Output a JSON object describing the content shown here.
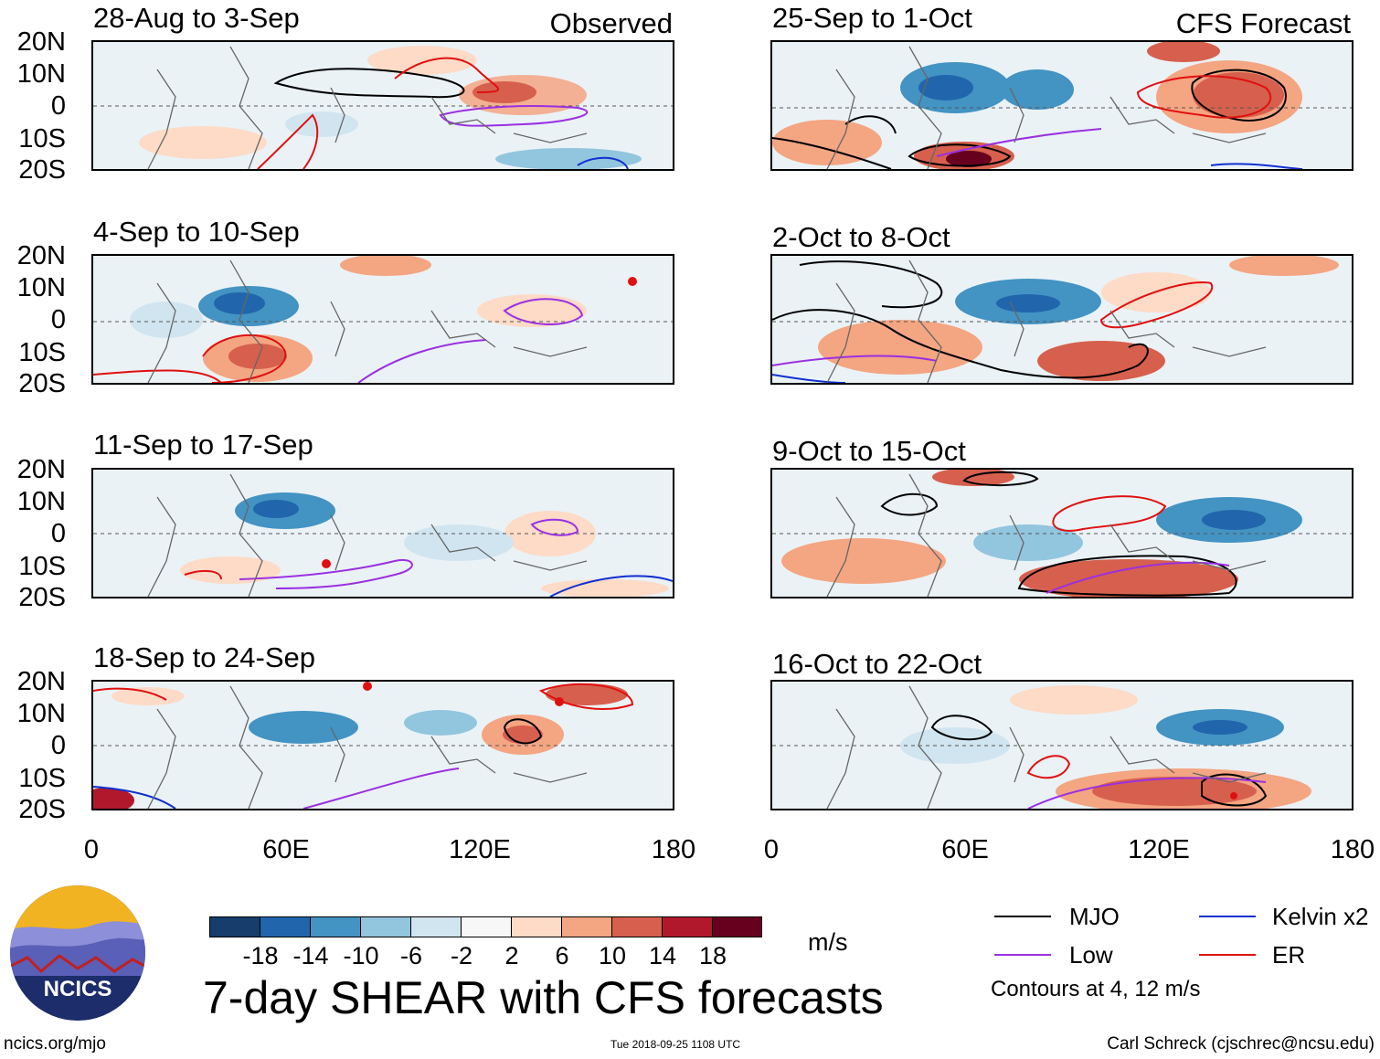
{
  "panels": {
    "observed_label": "Observed",
    "forecast_label": "CFS Forecast",
    "left": [
      {
        "date": "28-Aug to 3-Sep"
      },
      {
        "date": "4-Sep to 10-Sep"
      },
      {
        "date": "11-Sep to 17-Sep"
      },
      {
        "date": "18-Sep to 24-Sep"
      }
    ],
    "right": [
      {
        "date": "25-Sep to 1-Oct"
      },
      {
        "date": "2-Oct to 8-Oct"
      },
      {
        "date": "9-Oct to 15-Oct"
      },
      {
        "date": "16-Oct to 22-Oct"
      }
    ]
  },
  "axes": {
    "lat_labels": [
      "20N",
      "10N",
      "0",
      "10S",
      "20S"
    ],
    "lon_labels": [
      "0",
      "60E",
      "120E",
      "180"
    ]
  },
  "colorbar": {
    "colors": [
      "#163d6b",
      "#2166ac",
      "#4393c3",
      "#92c5de",
      "#d1e5f0",
      "#f7f7f7",
      "#fddbc7",
      "#f4a582",
      "#d6604d",
      "#b2182b",
      "#67001f"
    ],
    "labels": [
      "-18",
      "-14",
      "-10",
      "-6",
      "-2",
      "2",
      "6",
      "10",
      "14",
      "18"
    ],
    "units": "m/s"
  },
  "legend": {
    "mjo": {
      "label": "MJO",
      "color": "#000000"
    },
    "low": {
      "label": "Low",
      "color": "#9b30e0"
    },
    "kelvin": {
      "label": "Kelvin x2",
      "color": "#1030d0"
    },
    "er": {
      "label": "ER",
      "color": "#e01010"
    },
    "note": "Contours at 4, 12 m/s"
  },
  "footer": {
    "title": "7-day SHEAR with CFS forecasts",
    "site": "ncics.org/mjo",
    "timestamp": "Tue 2018-09-25 1108 UTC",
    "author": "Carl Schreck (cjschrec@ncsu.edu)",
    "logo_text": "NCICS"
  }
}
